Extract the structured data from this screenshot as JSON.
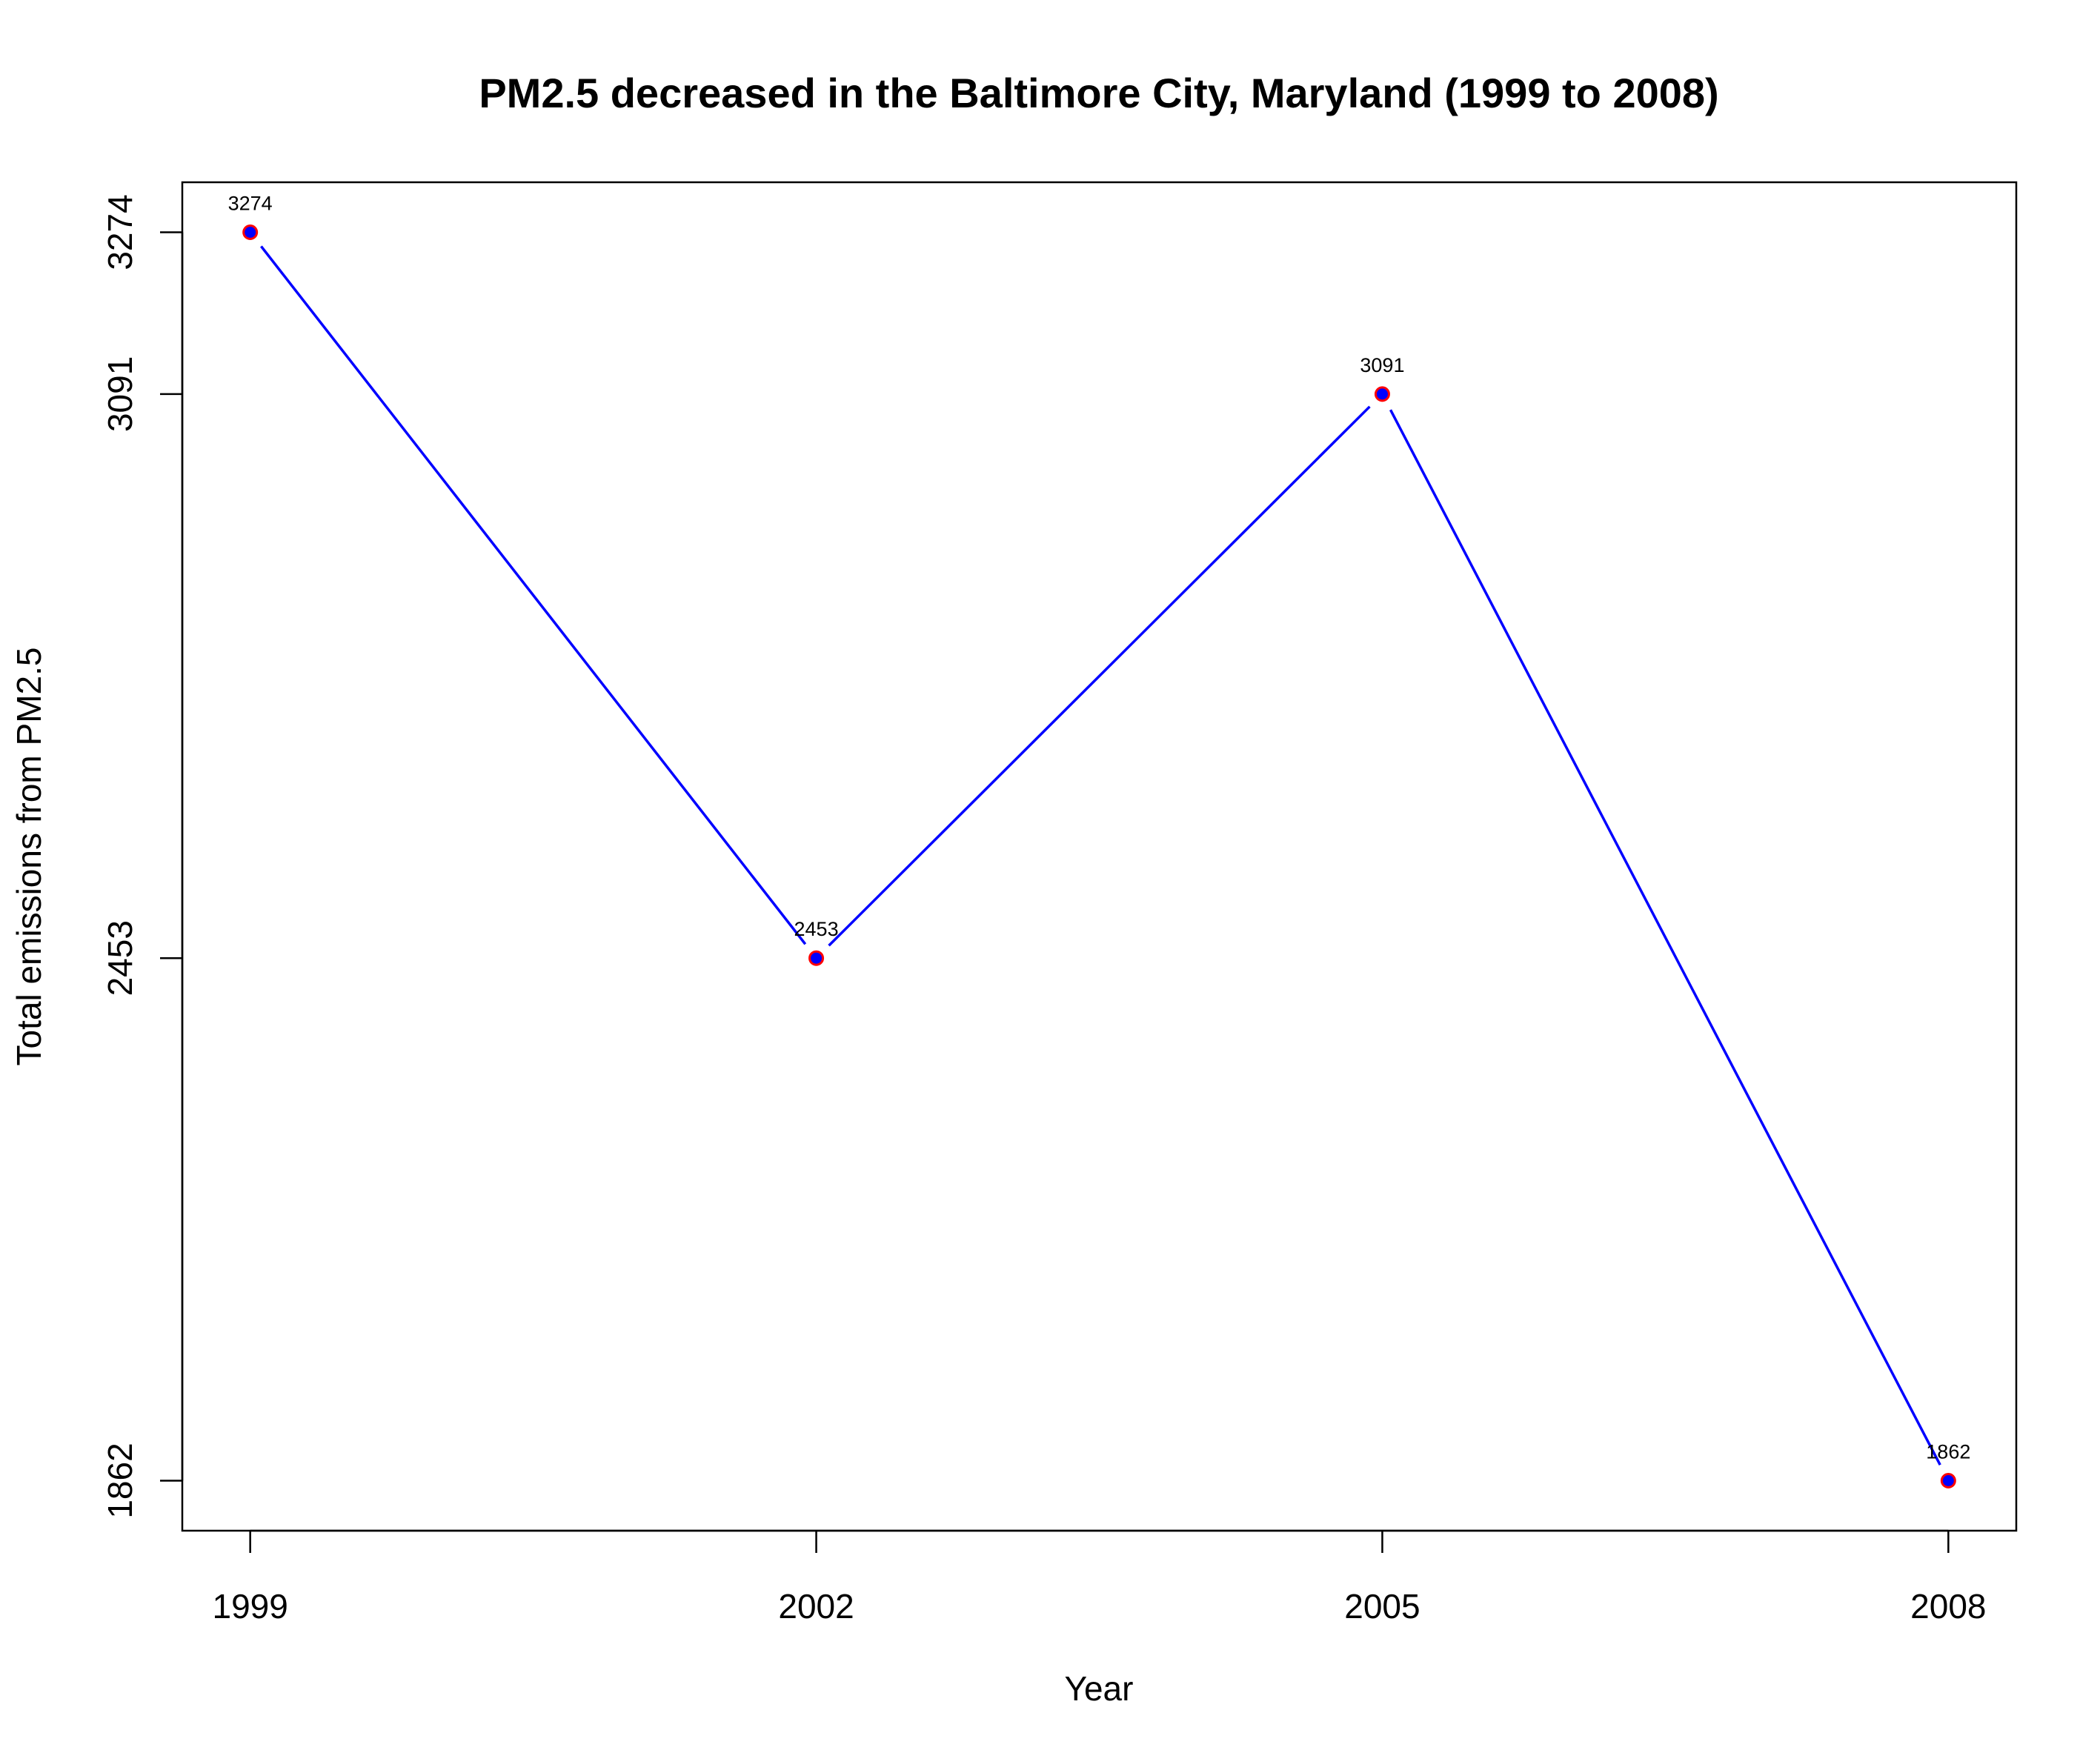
{
  "chart_data": {
    "type": "line",
    "title": "PM2.5 decreased in the Baltimore City, Maryland (1999 to 2008)",
    "xlabel": "Year",
    "ylabel": "Total emissions from PM2.5",
    "x": [
      1999,
      2002,
      2005,
      2008
    ],
    "x_tick_labels": [
      "1999",
      "2002",
      "2005",
      "2008"
    ],
    "y_ticks": [
      1862,
      2453,
      3091,
      3274
    ],
    "y_tick_labels": [
      "1862",
      "2453",
      "3091",
      "3274"
    ],
    "series": [
      {
        "values": [
          3274,
          2453,
          3091,
          1862
        ],
        "data_labels": [
          "3274",
          "2453",
          "3091",
          "1862"
        ],
        "line_color": "#0000ff",
        "point_fill": "#0000ff",
        "point_border": "#ff0000"
      }
    ],
    "xlim": [
      1998.64,
      2008.36
    ],
    "ylim": [
      1805.44,
      3330.56
    ],
    "grid": false,
    "legend": "none"
  }
}
